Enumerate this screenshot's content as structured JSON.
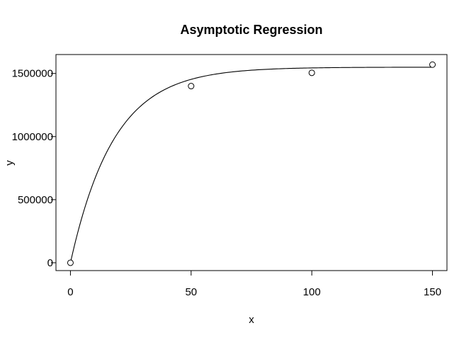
{
  "chart_data": {
    "type": "scatter",
    "title": "Asymptotic Regression",
    "xlabel": "x",
    "ylabel": "y",
    "xlim": [
      -6,
      156
    ],
    "ylim": [
      -62000,
      1650000
    ],
    "x_ticks": [
      0,
      50,
      100,
      150
    ],
    "y_ticks": [
      0,
      500000,
      1000000,
      1500000
    ],
    "x_tick_labels": [
      "0",
      "50",
      "100",
      "150"
    ],
    "y_tick_labels": [
      "0",
      "500000",
      "1000000",
      "1500000"
    ],
    "points": [
      {
        "x": 0,
        "y": 0
      },
      {
        "x": 50,
        "y": 1400000
      },
      {
        "x": 100,
        "y": 1505000
      },
      {
        "x": 150,
        "y": 1570000
      }
    ],
    "fit": {
      "model": "asymptotic",
      "asymptote": 1550000,
      "initial": 0,
      "rate": 0.0555
    },
    "grid": false,
    "legend": "none"
  }
}
